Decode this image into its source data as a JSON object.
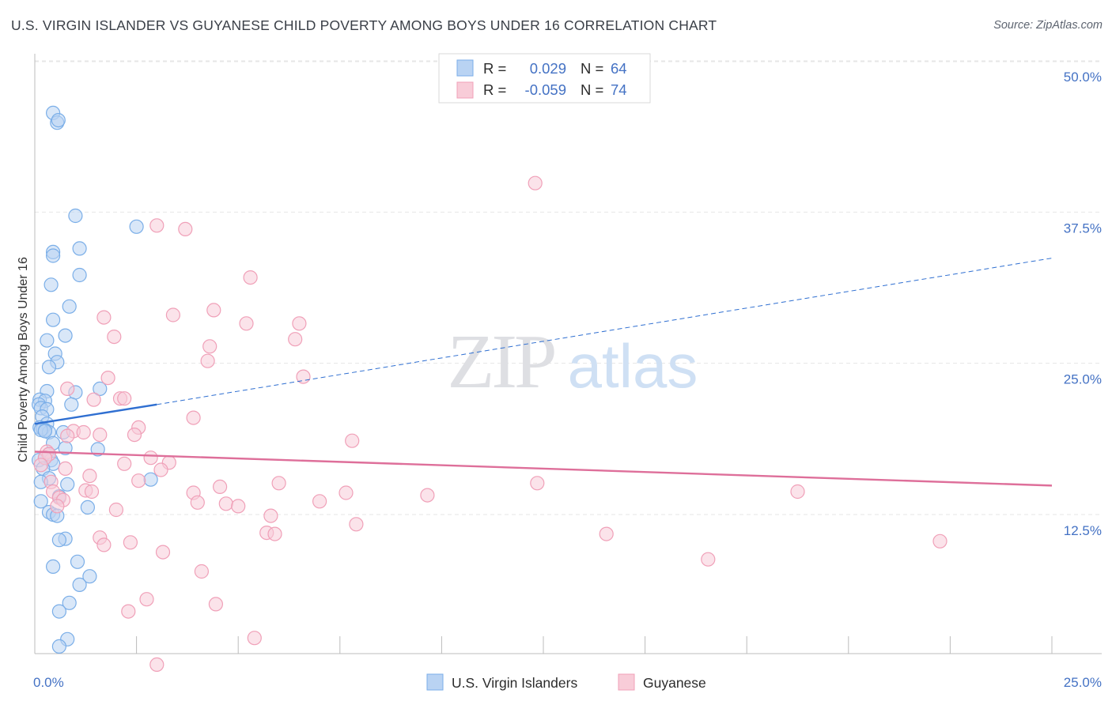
{
  "page": {
    "title": "U.S. VIRGIN ISLANDER VS GUYANESE CHILD POVERTY AMONG BOYS UNDER 16 CORRELATION CHART",
    "source": "Source: ZipAtlas.com",
    "watermark": {
      "zip": "ZIP",
      "atlas": "atlas"
    }
  },
  "chart_data": {
    "type": "scatter",
    "title": "U.S. VIRGIN ISLANDER VS GUYANESE CHILD POVERTY AMONG BOYS UNDER 16 CORRELATION CHART",
    "xlabel": "",
    "ylabel": "Child Poverty Among Boys Under 16",
    "xlim": [
      0,
      25
    ],
    "ylim": [
      0,
      52
    ],
    "x_tick_labels": [
      {
        "value": 0,
        "label": "0.0%"
      },
      {
        "value": 25,
        "label": "25.0%"
      }
    ],
    "x_minor_ticks": [
      2.5,
      5,
      7.5,
      10,
      12.5,
      15,
      17.5,
      20,
      22.5,
      25
    ],
    "y_ticks": [
      {
        "value": 12.5,
        "label": "12.5%"
      },
      {
        "value": 25,
        "label": "25.0%"
      },
      {
        "value": 37.5,
        "label": "37.5%"
      },
      {
        "value": 50,
        "label": "50.0%"
      }
    ],
    "legend_stats": [
      {
        "r_label": "R =",
        "r_value": "0.029",
        "n_label": "N =",
        "n_value": "64"
      },
      {
        "r_label": "R =",
        "r_value": "-0.059",
        "n_label": "N =",
        "n_value": "74"
      }
    ],
    "series": [
      {
        "name": "U.S. Virgin Islanders",
        "color": "#7aaee8",
        "fill": "#b9d3f3",
        "line_color": "#2f6fd1",
        "trend": {
          "solid": [
            [
              0,
              21.3
            ],
            [
              3.0,
              22.9
            ]
          ],
          "dashed": [
            [
              3.0,
              22.9
            ],
            [
              25,
              35.0
            ]
          ]
        },
        "points": [
          [
            0.45,
            47.0
          ],
          [
            0.55,
            46.2
          ],
          [
            0.58,
            46.4
          ],
          [
            1.0,
            38.5
          ],
          [
            2.5,
            37.6
          ],
          [
            0.45,
            35.5
          ],
          [
            0.45,
            35.2
          ],
          [
            1.1,
            35.8
          ],
          [
            1.1,
            33.6
          ],
          [
            0.4,
            32.8
          ],
          [
            0.85,
            31.0
          ],
          [
            0.45,
            29.9
          ],
          [
            0.75,
            28.6
          ],
          [
            0.3,
            28.2
          ],
          [
            0.5,
            27.1
          ],
          [
            0.55,
            26.4
          ],
          [
            0.35,
            26.0
          ],
          [
            1.6,
            24.2
          ],
          [
            1.0,
            23.9
          ],
          [
            0.3,
            24.0
          ],
          [
            0.12,
            23.3
          ],
          [
            0.25,
            23.2
          ],
          [
            0.1,
            22.9
          ],
          [
            0.9,
            22.9
          ],
          [
            0.15,
            22.6
          ],
          [
            0.3,
            22.5
          ],
          [
            0.18,
            21.9
          ],
          [
            0.3,
            21.3
          ],
          [
            0.12,
            21.0
          ],
          [
            0.2,
            20.9
          ],
          [
            0.25,
            20.8
          ],
          [
            0.35,
            20.6
          ],
          [
            0.15,
            20.8
          ],
          [
            0.7,
            20.6
          ],
          [
            0.45,
            19.7
          ],
          [
            0.75,
            19.3
          ],
          [
            1.55,
            19.2
          ],
          [
            0.35,
            18.8
          ],
          [
            0.25,
            18.5
          ],
          [
            0.4,
            18.3
          ],
          [
            0.1,
            18.3
          ],
          [
            0.45,
            18.0
          ],
          [
            0.2,
            17.6
          ],
          [
            0.35,
            16.8
          ],
          [
            0.15,
            16.5
          ],
          [
            0.8,
            16.3
          ],
          [
            2.85,
            16.7
          ],
          [
            0.6,
            15.3
          ],
          [
            0.15,
            14.9
          ],
          [
            1.3,
            14.4
          ],
          [
            0.35,
            14.0
          ],
          [
            0.45,
            13.8
          ],
          [
            0.55,
            13.7
          ],
          [
            0.75,
            11.8
          ],
          [
            0.6,
            11.7
          ],
          [
            0.45,
            9.5
          ],
          [
            1.05,
            9.9
          ],
          [
            1.35,
            8.7
          ],
          [
            1.1,
            8.0
          ],
          [
            0.85,
            6.5
          ],
          [
            0.6,
            5.8
          ],
          [
            0.8,
            3.5
          ],
          [
            0.6,
            2.9
          ],
          [
            0.25,
            20.7
          ]
        ]
      },
      {
        "name": "Guyanese",
        "color": "#f0a0b8",
        "fill": "#f8ccd8",
        "line_color": "#de6f9a",
        "trend": {
          "solid": [
            [
              0,
              19.0
            ],
            [
              25,
              16.2
            ]
          ]
        },
        "points": [
          [
            12.3,
            41.2
          ],
          [
            3.0,
            37.7
          ],
          [
            3.7,
            37.4
          ],
          [
            5.3,
            33.4
          ],
          [
            1.7,
            30.1
          ],
          [
            3.4,
            30.3
          ],
          [
            4.4,
            30.7
          ],
          [
            5.2,
            29.6
          ],
          [
            6.5,
            29.6
          ],
          [
            1.95,
            28.5
          ],
          [
            6.4,
            28.3
          ],
          [
            4.3,
            27.7
          ],
          [
            4.25,
            26.5
          ],
          [
            1.8,
            25.1
          ],
          [
            6.6,
            25.2
          ],
          [
            0.8,
            24.2
          ],
          [
            2.1,
            23.4
          ],
          [
            1.45,
            23.3
          ],
          [
            2.2,
            23.4
          ],
          [
            3.9,
            21.8
          ],
          [
            2.55,
            21.0
          ],
          [
            0.95,
            20.7
          ],
          [
            1.2,
            20.6
          ],
          [
            1.6,
            20.4
          ],
          [
            2.45,
            20.4
          ],
          [
            7.8,
            19.9
          ],
          [
            0.3,
            19.0
          ],
          [
            0.35,
            18.8
          ],
          [
            0.25,
            18.5
          ],
          [
            2.85,
            18.5
          ],
          [
            0.15,
            17.9
          ],
          [
            2.2,
            18.0
          ],
          [
            3.3,
            18.1
          ],
          [
            0.75,
            17.6
          ],
          [
            3.1,
            17.5
          ],
          [
            1.35,
            17.0
          ],
          [
            0.4,
            16.5
          ],
          [
            2.55,
            16.6
          ],
          [
            6.0,
            16.4
          ],
          [
            4.55,
            16.1
          ],
          [
            0.45,
            15.7
          ],
          [
            1.25,
            15.8
          ],
          [
            1.4,
            15.7
          ],
          [
            3.9,
            15.6
          ],
          [
            7.65,
            15.6
          ],
          [
            9.65,
            15.4
          ],
          [
            0.6,
            15.2
          ],
          [
            0.7,
            15.0
          ],
          [
            4.0,
            14.8
          ],
          [
            4.7,
            14.7
          ],
          [
            7.0,
            14.9
          ],
          [
            5.0,
            14.5
          ],
          [
            2.0,
            14.2
          ],
          [
            0.55,
            14.5
          ],
          [
            5.8,
            13.7
          ],
          [
            7.9,
            13.0
          ],
          [
            12.35,
            16.4
          ],
          [
            5.7,
            12.3
          ],
          [
            5.9,
            12.2
          ],
          [
            14.05,
            12.2
          ],
          [
            18.75,
            15.7
          ],
          [
            1.6,
            11.9
          ],
          [
            2.35,
            11.5
          ],
          [
            22.25,
            11.6
          ],
          [
            1.7,
            11.3
          ],
          [
            3.15,
            10.7
          ],
          [
            16.55,
            10.1
          ],
          [
            4.1,
            9.1
          ],
          [
            2.75,
            6.8
          ],
          [
            4.45,
            6.4
          ],
          [
            2.3,
            5.8
          ],
          [
            5.4,
            3.6
          ],
          [
            3.0,
            1.4
          ],
          [
            0.8,
            20.3
          ]
        ]
      }
    ]
  }
}
